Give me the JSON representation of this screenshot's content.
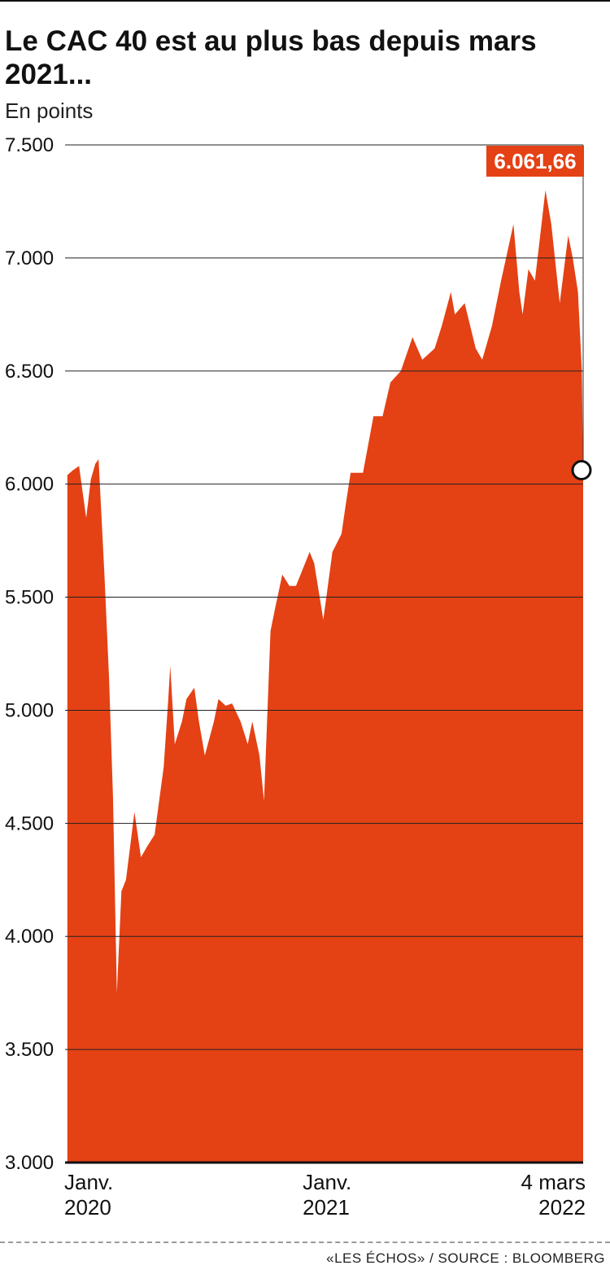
{
  "header": {
    "title": "Le CAC 40 est au plus bas depuis mars 2021...",
    "unit_label": "En points"
  },
  "footer": {
    "source": "«LES ÉCHOS» / SOURCE : BLOOMBERG"
  },
  "colors": {
    "area_fill": "#E44115",
    "label_bg": "#E44115",
    "gridline": "#222222",
    "text": "#111111"
  },
  "chart_data": {
    "type": "area",
    "title": "Le CAC 40 est au plus bas depuis mars 2021...",
    "ylabel": "En points",
    "xlabel": "",
    "ylim": [
      3000,
      7500
    ],
    "yticks": [
      3000,
      3500,
      4000,
      4500,
      5000,
      5500,
      6000,
      6500,
      7000,
      7500
    ],
    "ytick_labels": [
      "3.000",
      "3.500",
      "4.000",
      "4.500",
      "5.000",
      "5.500",
      "6.000",
      "6.500",
      "7.000",
      "7.500"
    ],
    "xlim": [
      "2020-01-01",
      "2022-03-04"
    ],
    "xticks": [
      {
        "date": "2020-01-01",
        "line1": "Janv.",
        "line2": "2020"
      },
      {
        "date": "2021-01-01",
        "line1": "Janv.",
        "line2": "2021"
      },
      {
        "date": "2022-03-04",
        "line1": "4 mars",
        "line2": "2022"
      }
    ],
    "grid": true,
    "legend": "none",
    "series": [
      {
        "x": [
          "2020-01-02",
          "2020-01-10",
          "2020-01-20",
          "2020-01-31",
          "2020-02-07",
          "2020-02-14",
          "2020-02-19",
          "2020-02-28",
          "2020-03-06",
          "2020-03-12",
          "2020-03-18",
          "2020-03-25",
          "2020-04-01",
          "2020-04-14",
          "2020-04-24",
          "2020-05-04",
          "2020-05-15",
          "2020-05-29",
          "2020-06-05",
          "2020-06-08",
          "2020-06-15",
          "2020-06-26",
          "2020-07-03",
          "2020-07-15",
          "2020-07-22",
          "2020-07-31",
          "2020-08-14",
          "2020-08-21",
          "2020-09-01",
          "2020-09-11",
          "2020-09-24",
          "2020-10-05",
          "2020-10-12",
          "2020-10-23",
          "2020-10-30",
          "2020-11-09",
          "2020-11-16",
          "2020-11-27",
          "2020-12-08",
          "2020-12-18",
          "2021-01-08",
          "2021-01-15",
          "2021-01-29",
          "2021-02-12",
          "2021-02-26",
          "2021-03-04",
          "2021-03-12",
          "2021-03-19",
          "2021-03-31",
          "2021-04-16",
          "2021-04-30",
          "2021-05-12",
          "2021-05-28",
          "2021-06-15",
          "2021-06-30",
          "2021-07-19",
          "2021-07-30",
          "2021-08-13",
          "2021-08-19",
          "2021-09-03",
          "2021-09-20",
          "2021-09-30",
          "2021-10-15",
          "2021-10-29",
          "2021-11-17",
          "2021-11-26",
          "2021-12-01",
          "2021-12-10",
          "2021-12-20",
          "2021-12-30",
          "2022-01-05",
          "2022-01-14",
          "2022-01-27",
          "2022-02-09",
          "2022-02-16",
          "2022-02-24",
          "2022-03-02",
          "2022-03-04"
        ],
        "y": [
          6040,
          6060,
          6080,
          5850,
          6020,
          6090,
          6110,
          5600,
          5150,
          4620,
          3750,
          4200,
          4250,
          4550,
          4350,
          4400,
          4450,
          4750,
          5050,
          5197,
          4850,
          4950,
          5050,
          5100,
          4950,
          4800,
          4950,
          5050,
          5020,
          5030,
          4950,
          4850,
          4950,
          4800,
          4600,
          5350,
          5450,
          5600,
          5550,
          5550,
          5700,
          5650,
          5400,
          5700,
          5780,
          5900,
          6050,
          6050,
          6050,
          6300,
          6300,
          6450,
          6500,
          6650,
          6550,
          6600,
          6700,
          6850,
          6750,
          6800,
          6600,
          6550,
          6700,
          6900,
          7150,
          6850,
          6750,
          6950,
          6900,
          7150,
          7300,
          7150,
          6800,
          7100,
          7000,
          6850,
          6500,
          6061.66
        ]
      }
    ],
    "annotations": [
      {
        "date": "2022-03-04",
        "value": 6061.66,
        "text": "6.061,66"
      }
    ]
  }
}
